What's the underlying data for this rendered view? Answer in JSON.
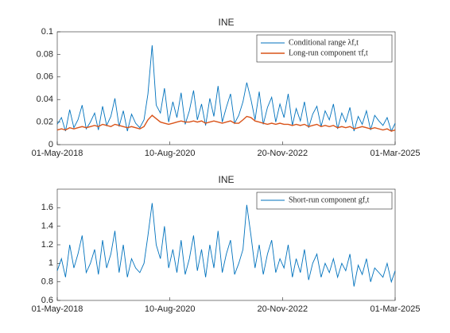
{
  "chart_data": [
    {
      "type": "line",
      "title": "INE",
      "legend": "upper right",
      "grid": false,
      "x": [
        "2018-05-01",
        "2018-06-01",
        "2018-07-01",
        "2018-08-01",
        "2018-09-01",
        "2018-10-01",
        "2018-11-01",
        "2018-12-01",
        "2019-01-01",
        "2019-02-01",
        "2019-03-01",
        "2019-04-01",
        "2019-05-01",
        "2019-06-01",
        "2019-07-01",
        "2019-08-01",
        "2019-09-01",
        "2019-10-01",
        "2019-11-01",
        "2019-12-01",
        "2020-01-01",
        "2020-02-01",
        "2020-03-01",
        "2020-04-01",
        "2020-05-01",
        "2020-06-01",
        "2020-07-01",
        "2020-08-01",
        "2020-09-01",
        "2020-10-01",
        "2020-11-01",
        "2020-12-01",
        "2021-01-01",
        "2021-02-01",
        "2021-03-01",
        "2021-04-01",
        "2021-05-01",
        "2021-06-01",
        "2021-07-01",
        "2021-08-01",
        "2021-09-01",
        "2021-10-01",
        "2021-11-01",
        "2021-12-01",
        "2022-01-01",
        "2022-02-01",
        "2022-03-01",
        "2022-04-01",
        "2022-05-01",
        "2022-06-01",
        "2022-07-01",
        "2022-08-01",
        "2022-09-01",
        "2022-10-01",
        "2022-11-01",
        "2022-12-01",
        "2023-01-01",
        "2023-02-01",
        "2023-03-01",
        "2023-04-01",
        "2023-05-01",
        "2023-06-01",
        "2023-07-01",
        "2023-08-01",
        "2023-09-01",
        "2023-10-01",
        "2023-11-01",
        "2023-12-01",
        "2024-01-01",
        "2024-02-01",
        "2024-03-01",
        "2024-04-01",
        "2024-05-01",
        "2024-06-01",
        "2024-07-01",
        "2024-08-01",
        "2024-09-01",
        "2024-10-01",
        "2024-11-01",
        "2024-12-01",
        "2025-01-01",
        "2025-02-01",
        "2025-03-01"
      ],
      "xlim": [
        "2018-05-01",
        "2025-03-01"
      ],
      "xticks": [
        {
          "value": "2018-05-01",
          "label": "01-May-2018"
        },
        {
          "value": "2020-08-10",
          "label": "10-Aug-2020"
        },
        {
          "value": "2022-11-20",
          "label": "20-Nov-2022"
        },
        {
          "value": "2025-03-01",
          "label": "01-Mar-2025"
        }
      ],
      "ylim": [
        0,
        0.1
      ],
      "yticks": [
        0,
        0.02,
        0.04,
        0.06,
        0.08,
        0.1
      ],
      "series": [
        {
          "name": "Conditional range λf,t",
          "color": "#0072bd",
          "values": [
            0.018,
            0.024,
            0.012,
            0.031,
            0.015,
            0.022,
            0.035,
            0.014,
            0.02,
            0.028,
            0.013,
            0.034,
            0.017,
            0.025,
            0.041,
            0.016,
            0.03,
            0.012,
            0.027,
            0.019,
            0.015,
            0.022,
            0.045,
            0.088,
            0.035,
            0.028,
            0.05,
            0.02,
            0.038,
            0.024,
            0.046,
            0.018,
            0.03,
            0.048,
            0.022,
            0.036,
            0.017,
            0.041,
            0.025,
            0.052,
            0.02,
            0.033,
            0.045,
            0.019,
            0.026,
            0.038,
            0.055,
            0.04,
            0.022,
            0.047,
            0.018,
            0.033,
            0.042,
            0.02,
            0.036,
            0.024,
            0.045,
            0.017,
            0.032,
            0.021,
            0.038,
            0.015,
            0.027,
            0.034,
            0.016,
            0.03,
            0.022,
            0.036,
            0.014,
            0.028,
            0.02,
            0.033,
            0.012,
            0.025,
            0.018,
            0.03,
            0.013,
            0.026,
            0.021,
            0.017,
            0.024,
            0.012,
            0.019
          ]
        },
        {
          "name": "Long-run component τf,t",
          "color": "#d95319",
          "values": [
            0.013,
            0.014,
            0.013,
            0.015,
            0.014,
            0.015,
            0.016,
            0.015,
            0.016,
            0.017,
            0.016,
            0.018,
            0.017,
            0.016,
            0.018,
            0.017,
            0.016,
            0.015,
            0.016,
            0.015,
            0.014,
            0.016,
            0.022,
            0.026,
            0.023,
            0.02,
            0.019,
            0.018,
            0.019,
            0.02,
            0.021,
            0.02,
            0.02,
            0.021,
            0.02,
            0.021,
            0.019,
            0.02,
            0.021,
            0.02,
            0.019,
            0.02,
            0.021,
            0.019,
            0.019,
            0.022,
            0.025,
            0.024,
            0.021,
            0.02,
            0.019,
            0.018,
            0.019,
            0.018,
            0.019,
            0.018,
            0.018,
            0.017,
            0.018,
            0.017,
            0.018,
            0.016,
            0.017,
            0.018,
            0.016,
            0.017,
            0.016,
            0.017,
            0.015,
            0.016,
            0.015,
            0.016,
            0.014,
            0.015,
            0.016,
            0.015,
            0.014,
            0.015,
            0.014,
            0.013,
            0.014,
            0.012,
            0.013
          ]
        }
      ]
    },
    {
      "type": "line",
      "title": "INE",
      "legend": "upper right",
      "grid": false,
      "x": [
        "2018-05-01",
        "2018-06-01",
        "2018-07-01",
        "2018-08-01",
        "2018-09-01",
        "2018-10-01",
        "2018-11-01",
        "2018-12-01",
        "2019-01-01",
        "2019-02-01",
        "2019-03-01",
        "2019-04-01",
        "2019-05-01",
        "2019-06-01",
        "2019-07-01",
        "2019-08-01",
        "2019-09-01",
        "2019-10-01",
        "2019-11-01",
        "2019-12-01",
        "2020-01-01",
        "2020-02-01",
        "2020-03-01",
        "2020-04-01",
        "2020-05-01",
        "2020-06-01",
        "2020-07-01",
        "2020-08-01",
        "2020-09-01",
        "2020-10-01",
        "2020-11-01",
        "2020-12-01",
        "2021-01-01",
        "2021-02-01",
        "2021-03-01",
        "2021-04-01",
        "2021-05-01",
        "2021-06-01",
        "2021-07-01",
        "2021-08-01",
        "2021-09-01",
        "2021-10-01",
        "2021-11-01",
        "2021-12-01",
        "2022-01-01",
        "2022-02-01",
        "2022-03-01",
        "2022-04-01",
        "2022-05-01",
        "2022-06-01",
        "2022-07-01",
        "2022-08-01",
        "2022-09-01",
        "2022-10-01",
        "2022-11-01",
        "2022-12-01",
        "2023-01-01",
        "2023-02-01",
        "2023-03-01",
        "2023-04-01",
        "2023-05-01",
        "2023-06-01",
        "2023-07-01",
        "2023-08-01",
        "2023-09-01",
        "2023-10-01",
        "2023-11-01",
        "2023-12-01",
        "2024-01-01",
        "2024-02-01",
        "2024-03-01",
        "2024-04-01",
        "2024-05-01",
        "2024-06-01",
        "2024-07-01",
        "2024-08-01",
        "2024-09-01",
        "2024-10-01",
        "2024-11-01",
        "2024-12-01",
        "2025-01-01",
        "2025-02-01",
        "2025-03-01"
      ],
      "xlim": [
        "2018-05-01",
        "2025-03-01"
      ],
      "xticks": [
        {
          "value": "2018-05-01",
          "label": "01-May-2018"
        },
        {
          "value": "2020-08-10",
          "label": "10-Aug-2020"
        },
        {
          "value": "2022-11-20",
          "label": "20-Nov-2022"
        },
        {
          "value": "2025-03-01",
          "label": "01-Mar-2025"
        }
      ],
      "ylim": [
        0.6,
        1.8
      ],
      "yticks": [
        0.6,
        0.8,
        1,
        1.2,
        1.4,
        1.6
      ],
      "series": [
        {
          "name": "Short-run component gf,t",
          "color": "#0072bd",
          "values": [
            0.92,
            1.05,
            0.85,
            1.2,
            0.95,
            1.1,
            1.3,
            0.9,
            1.0,
            1.15,
            0.88,
            1.25,
            0.95,
            1.1,
            1.35,
            0.9,
            1.2,
            0.85,
            1.05,
            0.95,
            0.9,
            1.0,
            1.3,
            1.65,
            1.2,
            1.05,
            1.4,
            0.95,
            1.15,
            0.9,
            1.25,
            0.88,
            1.05,
            1.3,
            0.92,
            1.15,
            0.85,
            1.2,
            0.95,
            1.35,
            0.9,
            1.1,
            1.25,
            0.88,
            1.0,
            1.15,
            1.63,
            1.3,
            0.95,
            1.2,
            0.88,
            1.1,
            1.25,
            0.9,
            1.05,
            0.95,
            1.2,
            0.85,
            1.05,
            0.9,
            1.15,
            0.82,
            1.0,
            1.1,
            0.85,
            1.0,
            0.9,
            1.05,
            0.85,
            1.0,
            0.92,
            1.1,
            0.75,
            0.98,
            0.88,
            1.05,
            0.8,
            0.95,
            0.9,
            0.85,
            1.0,
            0.8,
            0.92
          ]
        }
      ]
    }
  ]
}
